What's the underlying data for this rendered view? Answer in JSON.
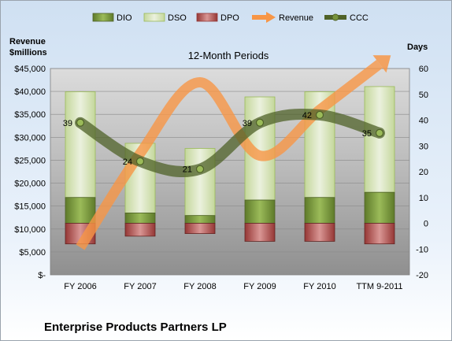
{
  "chart_data": {
    "type": "bar",
    "title": "12-Month Periods",
    "company": "Enterprise Products Partners LP",
    "y_left_label_line1": "Revenue",
    "y_left_label_line2": "$millions",
    "y_right_label": "Days",
    "categories": [
      "FY 2006",
      "FY 2007",
      "FY 2008",
      "FY 2009",
      "FY 2010",
      "TTM 9-2011"
    ],
    "left_ticks": [
      "$-",
      "$5,000",
      "$10,000",
      "$15,000",
      "$20,000",
      "$25,000",
      "$30,000",
      "$35,000",
      "$40,000",
      "$45,000"
    ],
    "right_ticks": [
      "-20",
      "-10",
      "0",
      "10",
      "20",
      "30",
      "40",
      "50",
      "60"
    ],
    "y_left_lim": [
      0,
      45000
    ],
    "y_right_lim": [
      -20,
      60
    ],
    "series": [
      {
        "name": "DIO",
        "values": [
          10,
          4,
          3,
          9,
          10,
          12
        ]
      },
      {
        "name": "DSO",
        "values": [
          41,
          27,
          26,
          40,
          41,
          41
        ]
      },
      {
        "name": "DPO",
        "values": [
          -8,
          -5,
          -4,
          -7,
          -7,
          -8
        ]
      },
      {
        "name": "Revenue",
        "values": [
          6000,
          26500,
          42000,
          26000,
          36000,
          46000
        ]
      },
      {
        "name": "CCC",
        "values": [
          39,
          24,
          21,
          39,
          42,
          35
        ]
      }
    ],
    "ccc_labels": [
      "39",
      "24",
      "21",
      "39",
      "42",
      "35"
    ],
    "colors": {
      "DIO": "#77933c",
      "DSO": "#d7e4bd",
      "DPO": "#c0504d",
      "Revenue": "#f79646",
      "CCC": "#4f6228",
      "plot_bg": "#b7b7b7"
    },
    "legend_position": "top"
  }
}
